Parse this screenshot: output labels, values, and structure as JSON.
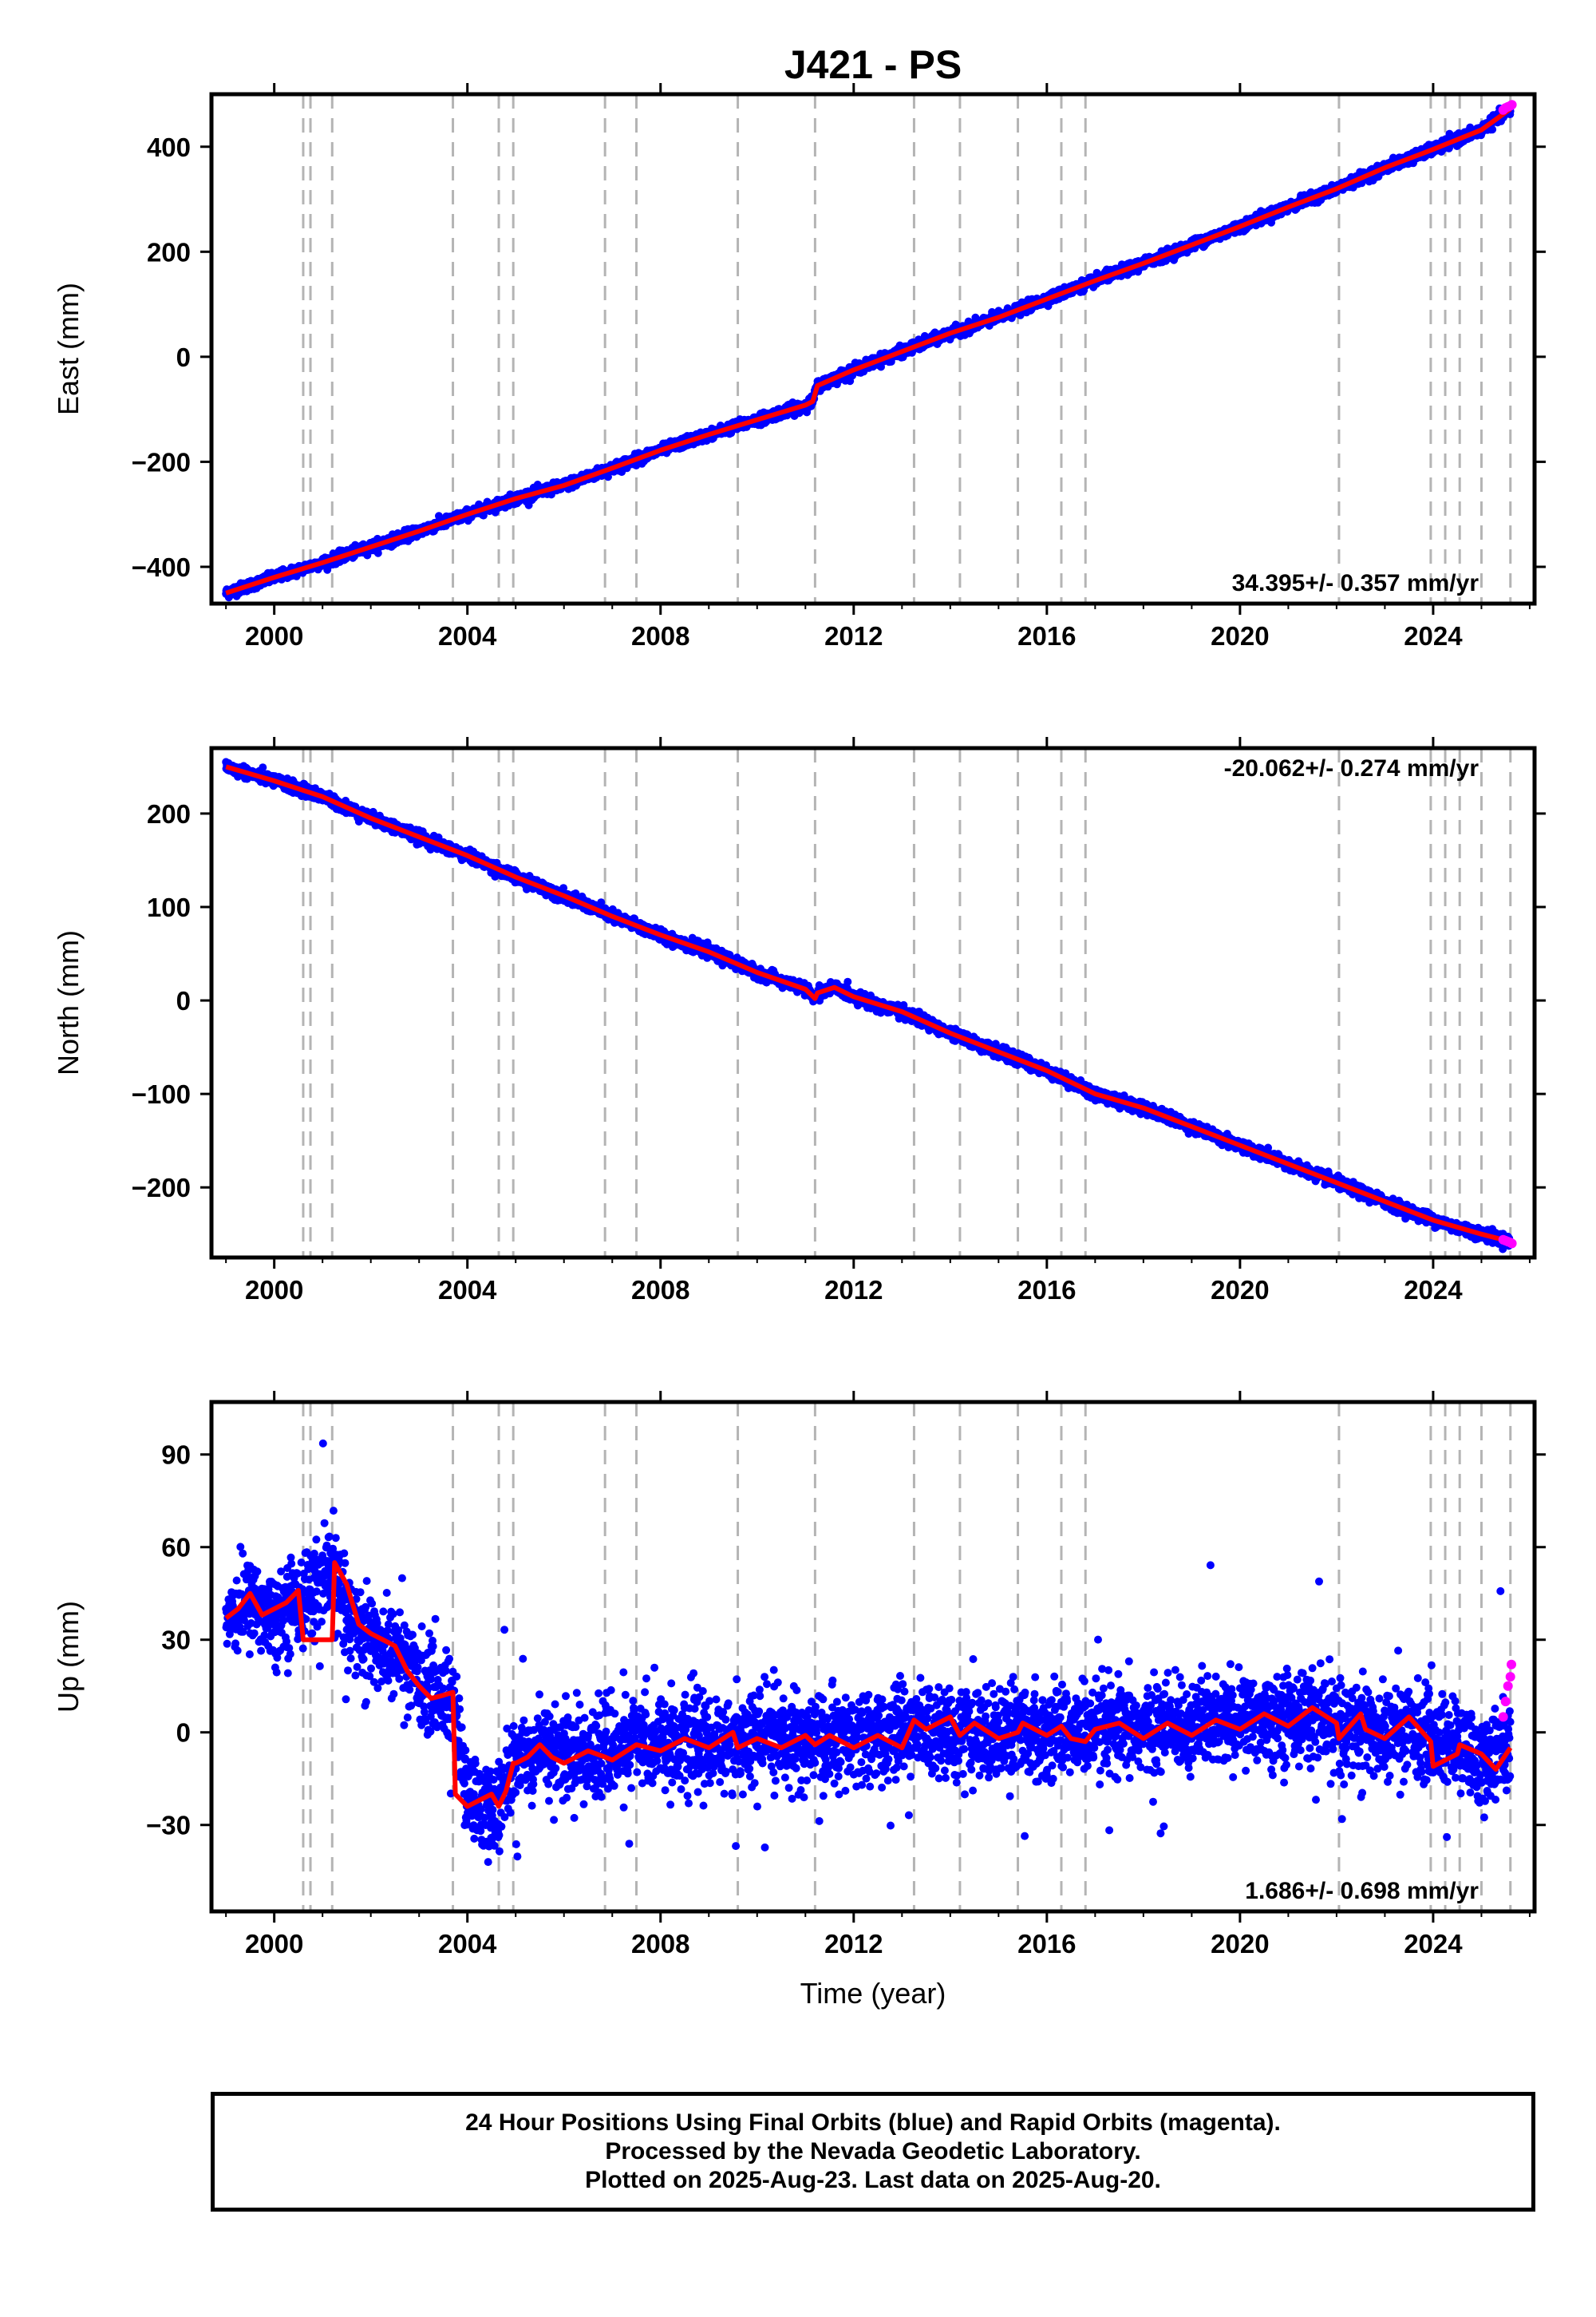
{
  "title": "J421 - PS",
  "colors": {
    "final_orbits": "#0000ff",
    "rapid_orbits": "#ff00ff",
    "model": "#ff0000",
    "event_lines": "#b4b4b4"
  },
  "chart_data": [
    {
      "type": "scatter",
      "component": "East",
      "ylabel": "East (mm)",
      "xlabel": "",
      "xlim": [
        1998.7,
        2026.1
      ],
      "ylim": [
        -470,
        500
      ],
      "xticks": [
        2000,
        2004,
        2008,
        2012,
        2016,
        2020,
        2024
      ],
      "yticks": [
        -400,
        -200,
        0,
        200,
        400
      ],
      "ytick_labels": [
        "−400",
        "−200",
        "0",
        "200",
        "400"
      ],
      "rate_text": "34.395+/- 0.357 mm/yr",
      "rate_position": "bottom-right",
      "event_lines": [
        2000.6,
        2000.75,
        2001.2,
        2003.7,
        2004.65,
        2004.95,
        2006.85,
        2007.5,
        2009.6,
        2011.2,
        2013.25,
        2014.2,
        2015.4,
        2016.3,
        2016.8,
        2022.05,
        2023.95,
        2024.25,
        2024.55,
        2025.0,
        2025.6
      ],
      "series": [
        {
          "marker": "final orbits",
          "x": [
            1999.0,
            2000.0,
            2001.0,
            2002.0,
            2003.0,
            2004.0,
            2005.0,
            2006.0,
            2007.0,
            2008.0,
            2009.0,
            2010.0,
            2011.0,
            2011.15,
            2011.25,
            2012.0,
            2013.0,
            2014.0,
            2015.0,
            2016.0,
            2017.0,
            2018.0,
            2019.0,
            2020.0,
            2021.0,
            2022.0,
            2023.0,
            2024.0,
            2025.0,
            2025.6
          ],
          "y": [
            -450,
            -420,
            -392,
            -362,
            -332,
            -300,
            -270,
            -245,
            -212,
            -178,
            -148,
            -120,
            -92,
            -85,
            -55,
            -25,
            10,
            45,
            75,
            110,
            145,
            178,
            213,
            248,
            285,
            320,
            360,
            395,
            432,
            472
          ],
          "noise": 8
        },
        {
          "marker": "rapid orbits",
          "x": [
            2025.45,
            2025.5,
            2025.55,
            2025.6,
            2025.63
          ],
          "y": [
            470,
            474,
            476,
            478,
            480
          ]
        },
        {
          "marker": "model",
          "x": [
            1999.0,
            2000.0,
            2001.0,
            2002.0,
            2003.0,
            2004.0,
            2005.0,
            2006.0,
            2007.0,
            2008.0,
            2009.0,
            2010.0,
            2011.0,
            2011.15,
            2011.25,
            2012.0,
            2013.0,
            2014.0,
            2015.0,
            2016.0,
            2017.0,
            2018.0,
            2019.0,
            2020.0,
            2021.0,
            2022.0,
            2023.0,
            2024.0,
            2025.0,
            2025.6
          ],
          "y": [
            -450,
            -420,
            -392,
            -362,
            -332,
            -300,
            -270,
            -245,
            -212,
            -178,
            -148,
            -120,
            -92,
            -85,
            -55,
            -25,
            10,
            45,
            75,
            110,
            145,
            178,
            213,
            248,
            285,
            320,
            360,
            395,
            432,
            472
          ]
        }
      ]
    },
    {
      "type": "scatter",
      "component": "North",
      "ylabel": "North (mm)",
      "xlabel": "",
      "xlim": [
        1998.7,
        2026.1
      ],
      "ylim": [
        -275,
        270
      ],
      "xticks": [
        2000,
        2004,
        2008,
        2012,
        2016,
        2020,
        2024
      ],
      "yticks": [
        -200,
        -100,
        0,
        100,
        200
      ],
      "ytick_labels": [
        "−200",
        "−100",
        "0",
        "100",
        "200"
      ],
      "rate_text": "-20.062+/- 0.274 mm/yr",
      "rate_position": "top-right",
      "event_lines": [
        2000.6,
        2000.75,
        2001.2,
        2003.7,
        2004.65,
        2004.95,
        2006.85,
        2007.5,
        2009.6,
        2011.2,
        2013.25,
        2014.2,
        2015.4,
        2016.3,
        2016.8,
        2022.05,
        2023.95,
        2024.25,
        2024.55,
        2025.0,
        2025.6
      ],
      "series": [
        {
          "marker": "final orbits",
          "x": [
            1999.0,
            2000.0,
            2001.0,
            2002.0,
            2003.0,
            2004.0,
            2005.0,
            2006.0,
            2007.0,
            2008.0,
            2009.0,
            2010.0,
            2011.0,
            2011.2,
            2011.25,
            2011.6,
            2012.0,
            2013.0,
            2014.0,
            2015.0,
            2016.0,
            2017.0,
            2018.0,
            2019.0,
            2020.0,
            2021.0,
            2022.0,
            2023.0,
            2024.0,
            2025.0,
            2025.6
          ],
          "y": [
            250,
            235,
            218,
            195,
            175,
            155,
            132,
            112,
            90,
            70,
            52,
            30,
            12,
            2,
            8,
            14,
            4,
            -12,
            -35,
            -55,
            -75,
            -100,
            -115,
            -135,
            -155,
            -175,
            -195,
            -215,
            -235,
            -250,
            -258
          ],
          "noise": 5
        },
        {
          "marker": "rapid orbits",
          "x": [
            2025.45,
            2025.5,
            2025.55,
            2025.6,
            2025.63
          ],
          "y": [
            -256,
            -257,
            -258,
            -259,
            -260
          ]
        },
        {
          "marker": "model",
          "x": [
            1999.0,
            2000.0,
            2001.0,
            2002.0,
            2003.0,
            2004.0,
            2005.0,
            2006.0,
            2007.0,
            2008.0,
            2009.0,
            2010.0,
            2011.0,
            2011.2,
            2011.25,
            2011.6,
            2012.0,
            2013.0,
            2014.0,
            2015.0,
            2016.0,
            2017.0,
            2018.0,
            2019.0,
            2020.0,
            2021.0,
            2022.0,
            2023.0,
            2024.0,
            2025.0,
            2025.6
          ],
          "y": [
            250,
            235,
            218,
            195,
            175,
            155,
            132,
            112,
            90,
            70,
            52,
            30,
            12,
            2,
            8,
            14,
            4,
            -12,
            -35,
            -55,
            -75,
            -100,
            -115,
            -135,
            -155,
            -175,
            -195,
            -215,
            -235,
            -250,
            -258
          ]
        }
      ]
    },
    {
      "type": "scatter",
      "component": "Up",
      "ylabel": "Up (mm)",
      "xlabel": "Time (year)",
      "xlim": [
        1998.7,
        2026.1
      ],
      "ylim": [
        -58,
        107
      ],
      "xticks": [
        2000,
        2004,
        2008,
        2012,
        2016,
        2020,
        2024
      ],
      "yticks": [
        -30,
        0,
        30,
        60,
        90
      ],
      "ytick_labels": [
        "−30",
        "0",
        "30",
        "60",
        "90"
      ],
      "rate_text": "1.686+/- 0.698 mm/yr",
      "rate_position": "bottom-right",
      "event_lines": [
        2000.6,
        2000.75,
        2001.2,
        2003.7,
        2004.65,
        2004.95,
        2006.85,
        2007.5,
        2009.6,
        2011.2,
        2013.25,
        2014.2,
        2015.4,
        2016.3,
        2016.8,
        2022.05,
        2023.95,
        2024.25,
        2024.55,
        2025.0,
        2025.6
      ],
      "series": [
        {
          "marker": "final orbits",
          "x": [
            1999.0,
            1999.5,
            2000.0,
            2000.6,
            2001.2,
            2001.6,
            2002.0,
            2002.6,
            2003.0,
            2003.4,
            2003.7,
            2004.0,
            2004.65,
            2004.95,
            2005.5,
            2006.5,
            2007.5,
            2008.5,
            2009.5,
            2010.5,
            2011.5,
            2012.5,
            2013.25,
            2014.5,
            2015.5,
            2016.5,
            2017.5,
            2018.5,
            2019.5,
            2020.5,
            2021.5,
            2022.05,
            2022.5,
            2023.0,
            2023.5,
            2023.95,
            2024.5,
            2025.0,
            2025.6
          ],
          "y": [
            38,
            42,
            38,
            44,
            52,
            35,
            30,
            25,
            18,
            12,
            10,
            -22,
            -25,
            -10,
            -5,
            -8,
            -3,
            -4,
            -3,
            -2,
            -3,
            -2,
            2,
            -1,
            1,
            0,
            0,
            2,
            3,
            5,
            6,
            1,
            2,
            -1,
            2,
            -2,
            -5,
            -10,
            -5
          ],
          "noise": 12
        },
        {
          "marker": "rapid orbits",
          "x": [
            2025.45,
            2025.5,
            2025.55,
            2025.6,
            2025.62
          ],
          "y": [
            5,
            10,
            15,
            18,
            22
          ]
        },
        {
          "marker": "model",
          "x": [
            1999.0,
            1999.25,
            1999.5,
            1999.75,
            2000.0,
            2000.25,
            2000.5,
            2000.6,
            2000.75,
            2001.2,
            2001.25,
            2001.5,
            2001.75,
            2002.0,
            2002.25,
            2002.5,
            2002.75,
            2003.0,
            2003.25,
            2003.5,
            2003.7,
            2003.75,
            2004.0,
            2004.25,
            2004.5,
            2004.65,
            2004.8,
            2004.95,
            2005.0,
            2005.25,
            2005.5,
            2005.75,
            2006.0,
            2006.5,
            2006.85,
            2007.0,
            2007.5,
            2008.0,
            2008.5,
            2009.0,
            2009.5,
            2009.6,
            2010.0,
            2010.5,
            2011.0,
            2011.2,
            2011.5,
            2012.0,
            2012.5,
            2013.0,
            2013.25,
            2013.5,
            2014.0,
            2014.2,
            2014.5,
            2015.0,
            2015.4,
            2015.5,
            2016.0,
            2016.3,
            2016.5,
            2016.8,
            2017.0,
            2017.5,
            2018.0,
            2018.5,
            2019.0,
            2019.5,
            2020.0,
            2020.5,
            2021.0,
            2021.5,
            2022.0,
            2022.05,
            2022.5,
            2022.6,
            2023.0,
            2023.5,
            2023.95,
            2024.0,
            2024.25,
            2024.5,
            2024.55,
            2025.0,
            2025.3,
            2025.6
          ],
          "y": [
            37,
            40,
            45,
            38,
            40,
            42,
            46,
            30,
            30,
            30,
            55,
            48,
            35,
            32,
            30,
            28,
            20,
            15,
            11,
            12,
            13,
            -20,
            -24,
            -22,
            -20,
            -24,
            -19,
            -10,
            -10,
            -8,
            -4,
            -8,
            -10,
            -6,
            -8,
            -9,
            -4,
            -6,
            -2,
            -5,
            0,
            -5,
            -2,
            -5,
            -1,
            -4,
            -1,
            -5,
            -1,
            -5,
            4,
            1,
            5,
            -1,
            3,
            -2,
            0,
            3,
            -1,
            2,
            -2,
            -3,
            1,
            3,
            -2,
            3,
            -1,
            4,
            1,
            6,
            2,
            8,
            3,
            -2,
            6,
            1,
            -2,
            5,
            -3,
            -11,
            -9,
            -7,
            -4,
            -7,
            -12,
            -5
          ]
        }
      ]
    }
  ],
  "footer": {
    "line1": "24 Hour Positions Using Final Orbits (blue) and Rapid Orbits (magenta).",
    "line2": "Processed by the Nevada Geodetic Laboratory.",
    "line3": "Plotted on 2025-Aug-23. Last data on 2025-Aug-20."
  }
}
